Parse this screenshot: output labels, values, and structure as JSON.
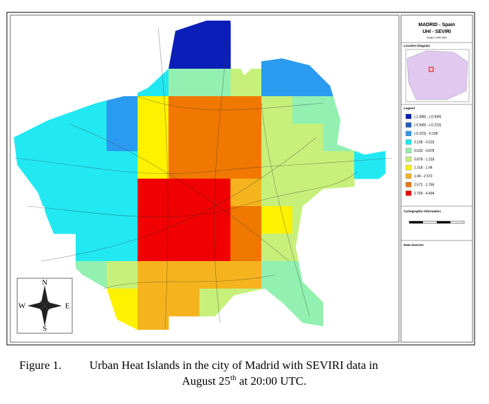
{
  "map": {
    "title": "MADRID - Spain",
    "subtitle": "UHI - SEVIRI",
    "scale": "Scale 1:400,000",
    "location_label": "Location Diagram",
    "legend_label": "Legend",
    "legend": [
      {
        "label": "(-1.088) - (-0.949)",
        "color": "#0a1fb8"
      },
      {
        "label": "(-0.949) - (-0.223)",
        "color": "#1f5ec4"
      },
      {
        "label": "(-0.223) - 0.158",
        "color": "#2a9bf0"
      },
      {
        "label": "0.158 - 0.533",
        "color": "#22e8f2"
      },
      {
        "label": "0.533 - 0.878",
        "color": "#92f0b0"
      },
      {
        "label": "0.878 - 1.318",
        "color": "#c6f07a"
      },
      {
        "label": "1.318 - 1.94",
        "color": "#fff200"
      },
      {
        "label": "1.94 - 2.572",
        "color": "#f5b41e"
      },
      {
        "label": "2.572 - 2.769",
        "color": "#f07800"
      },
      {
        "label": "2.769 - 4.434",
        "color": "#f00000"
      }
    ],
    "cartographic_label": "Cartographic Information",
    "sources_label": "Data Sources",
    "compass": {
      "n": "N",
      "s": "S",
      "e": "E",
      "w": "W"
    }
  },
  "caption": {
    "label": "Figure 1.",
    "line1": "Urban Heat Islands in the city of Madrid with SEVIRI data in",
    "line2_start": "August 25",
    "sup": "th",
    "line2_end": " at 20:00 UTC."
  }
}
